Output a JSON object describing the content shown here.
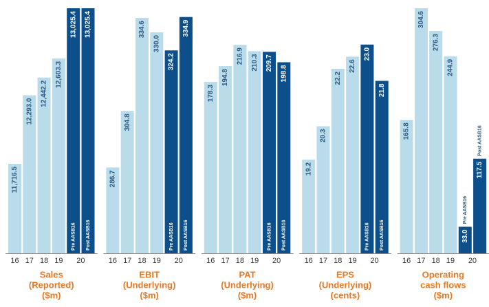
{
  "chart_data": [
    {
      "type": "bar",
      "title": [
        "Sales",
        "(Reported)",
        "($m)"
      ],
      "categories": [
        "16",
        "17",
        "18",
        "19",
        "20",
        null
      ],
      "values": [
        11716.5,
        12293.0,
        12442.2,
        12603.3,
        13025.4,
        13025.4
      ],
      "value_labels": [
        "11,716.5",
        "12,293.0",
        "12,442.2",
        "12,603.3",
        "13,025.4",
        "13,025.4"
      ],
      "colors": [
        "#b9dbea",
        "#b9dbea",
        "#b9dbea",
        "#b9dbea",
        "#0d4f8b",
        "#0d4f8b"
      ],
      "annotations": [
        null,
        null,
        null,
        null,
        "Pre AASB16",
        "Post AASB16"
      ],
      "ylim": [
        10963,
        13025.4
      ]
    },
    {
      "type": "bar",
      "title": [
        "EBIT",
        "(Underlying)",
        "($m)"
      ],
      "categories": [
        "16",
        "17",
        "18",
        "19",
        "20",
        null
      ],
      "values": [
        286.7,
        304.8,
        334.6,
        330.0,
        324.2,
        334.9
      ],
      "value_labels": [
        "286.7",
        "304.8",
        "334.6",
        "330.0",
        "324.2",
        "334.9"
      ],
      "colors": [
        "#b9dbea",
        "#b9dbea",
        "#b9dbea",
        "#b9dbea",
        "#0d4f8b",
        "#0d4f8b"
      ],
      "annotations": [
        null,
        null,
        null,
        null,
        "Pre AASB16",
        "Post AASB16"
      ],
      "ylim": [
        259.2,
        337.7
      ]
    },
    {
      "type": "bar",
      "title": [
        "PAT",
        "(Underlying)",
        "($m)"
      ],
      "categories": [
        "16",
        "17",
        "18",
        "19",
        "20",
        null
      ],
      "values": [
        178.3,
        194.8,
        216.9,
        210.3,
        209.7,
        198.8
      ],
      "colors": [
        "#b9dbea",
        "#b9dbea",
        "#b9dbea",
        "#b9dbea",
        "#0d4f8b",
        "#0d4f8b"
      ],
      "annotations": [
        null,
        null,
        null,
        null,
        "Pre AASB16",
        "Post AASB16"
      ],
      "ylim": [
        0,
        255
      ]
    },
    {
      "type": "bar",
      "title": [
        "EPS",
        "(Underlying)",
        "(cents)"
      ],
      "categories": [
        "16",
        "17",
        "18",
        "19",
        "20",
        null
      ],
      "values": [
        19.2,
        20.3,
        22.2,
        22.6,
        23.0,
        21.8
      ],
      "value_labels": [
        "19.2",
        "20.3",
        "22.2",
        "22.6",
        "23.0",
        "21.8"
      ],
      "colors": [
        "#b9dbea",
        "#b9dbea",
        "#b9dbea",
        "#b9dbea",
        "#0d4f8b",
        "#0d4f8b"
      ],
      "annotations": [
        null,
        null,
        null,
        null,
        "Pre AASB16",
        "Post AASB16"
      ],
      "ylim": [
        16.1,
        24.2
      ]
    },
    {
      "type": "bar",
      "title": [
        "Operating",
        "cash flows",
        "($m)"
      ],
      "categories": [
        "16",
        "17",
        "18",
        "19",
        "20",
        null
      ],
      "values": [
        165.8,
        304.6,
        276.3,
        244.9,
        33.0,
        117.5
      ],
      "value_labels": [
        "165.8",
        "304.6",
        "276.3",
        "244.9",
        "33.0",
        "117.5"
      ],
      "colors": [
        "#b9dbea",
        "#b9dbea",
        "#b9dbea",
        "#b9dbea",
        "#0d4f8b",
        "#0d4f8b"
      ],
      "annotations": [
        null,
        null,
        null,
        null,
        "Pre AASB16",
        "Post AASB16"
      ],
      "ylim": [
        0,
        304.6
      ]
    }
  ]
}
